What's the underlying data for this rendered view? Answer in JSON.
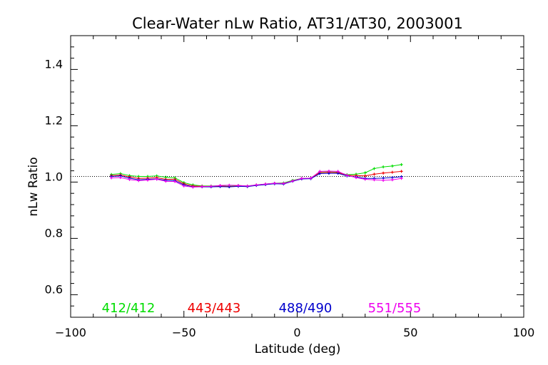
{
  "chart_data": {
    "type": "line",
    "title": "Clear-Water nLw Ratio, AT31/AT30, 2003001",
    "xlabel": "Latitude (deg)",
    "ylabel": "nLw Ratio",
    "xlim": [
      -100,
      100
    ],
    "ylim": [
      0.5,
      1.5
    ],
    "x_ticks": [
      -100,
      -50,
      0,
      50,
      100
    ],
    "x_tick_labels": [
      "−100",
      "−50",
      "0",
      "50",
      "100"
    ],
    "y_ticks": [
      0.6,
      0.8,
      1.0,
      1.2,
      1.4
    ],
    "y_tick_labels": [
      "0.6",
      "0.8",
      "1.0",
      "1.2",
      "1.4"
    ],
    "reference_line": {
      "y": 1.0,
      "style": "dotted"
    },
    "grid": false,
    "legend_placement": "bottom inside plot",
    "x": [
      -82,
      -78,
      -74,
      -70,
      -66,
      -62,
      -58,
      -54,
      -50,
      -46,
      -42,
      -38,
      -34,
      -30,
      -26,
      -22,
      -18,
      -14,
      -10,
      -6,
      -2,
      2,
      6,
      10,
      14,
      18,
      22,
      26,
      30,
      34,
      38,
      42,
      46
    ],
    "series": [
      {
        "name": "412/412",
        "color": "#00dd00",
        "values": [
          1.007,
          1.01,
          1.003,
          1.0,
          1.0,
          1.002,
          0.997,
          0.995,
          0.978,
          0.97,
          0.966,
          0.966,
          0.967,
          0.965,
          0.968,
          0.966,
          0.97,
          0.973,
          0.976,
          0.977,
          0.986,
          0.993,
          0.994,
          1.015,
          1.016,
          1.015,
          1.006,
          1.008,
          1.013,
          1.028,
          1.034,
          1.037,
          1.042
        ]
      },
      {
        "name": "443/443",
        "color": "#ee0000",
        "values": [
          1.003,
          1.005,
          0.998,
          0.993,
          0.994,
          0.996,
          0.99,
          0.99,
          0.974,
          0.966,
          0.965,
          0.965,
          0.966,
          0.964,
          0.966,
          0.965,
          0.969,
          0.972,
          0.975,
          0.975,
          0.984,
          0.992,
          0.993,
          1.014,
          1.015,
          1.014,
          1.004,
          1.003,
          1.002,
          1.008,
          1.012,
          1.015,
          1.018
        ]
      },
      {
        "name": "488/490",
        "color": "#0000cc",
        "values": [
          1.0,
          1.002,
          0.994,
          0.988,
          0.99,
          0.991,
          0.986,
          0.985,
          0.97,
          0.963,
          0.963,
          0.963,
          0.964,
          0.963,
          0.965,
          0.964,
          0.968,
          0.971,
          0.974,
          0.973,
          0.983,
          0.991,
          0.992,
          1.01,
          1.011,
          1.011,
          1.002,
          0.998,
          0.993,
          0.993,
          0.994,
          0.996,
          0.999
        ]
      },
      {
        "name": "551/555",
        "color": "#ee00ee",
        "values": [
          0.995,
          0.996,
          0.989,
          0.985,
          0.987,
          0.99,
          0.983,
          0.982,
          0.966,
          0.962,
          0.964,
          0.965,
          0.968,
          0.969,
          0.968,
          0.966,
          0.97,
          0.973,
          0.976,
          0.975,
          0.984,
          0.993,
          0.994,
          1.018,
          1.019,
          1.018,
          1.004,
          0.996,
          0.99,
          0.988,
          0.986,
          0.988,
          0.993
        ]
      }
    ]
  }
}
